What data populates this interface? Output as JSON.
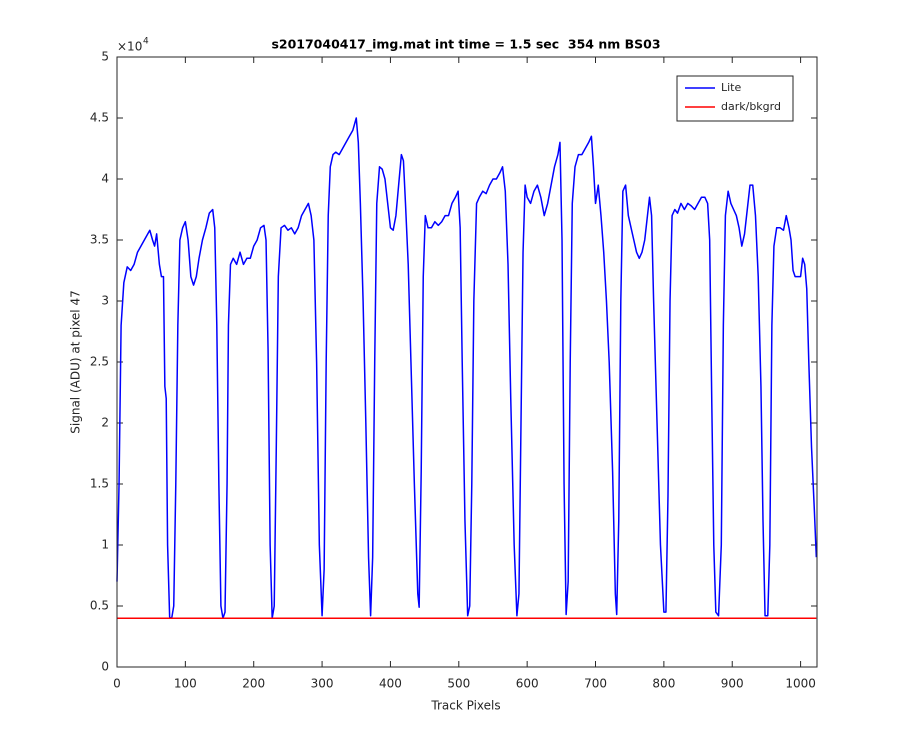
{
  "chart_data": {
    "type": "line",
    "title": "s2017040417_img.mat int time = 1.5 sec  354 nm BS03",
    "x_label": "Track Pixels",
    "y_label": "Signal (ADU) at pixel 47",
    "y_exponent_base": "×10",
    "y_exponent_power": "4",
    "xlim": [
      0,
      1024
    ],
    "ylim": [
      0,
      5
    ],
    "xticks": [
      0,
      100,
      200,
      300,
      400,
      500,
      600,
      700,
      800,
      900,
      1000
    ],
    "yticks": [
      0,
      0.5,
      1,
      1.5,
      2,
      2.5,
      3,
      3.5,
      4,
      4.5,
      5
    ],
    "grid": false,
    "legend_location": "northeast",
    "series": [
      {
        "name": "Lite",
        "color": "#0000ff",
        "x": [
          0,
          3,
          6,
          10,
          15,
          20,
          25,
          30,
          35,
          40,
          45,
          48,
          52,
          55,
          58,
          62,
          65,
          68,
          70,
          72,
          74,
          77,
          80,
          83,
          86,
          89,
          92,
          96,
          100,
          104,
          108,
          112,
          116,
          120,
          125,
          130,
          135,
          140,
          143,
          146,
          149,
          152,
          155,
          158,
          161,
          163,
          166,
          170,
          175,
          180,
          185,
          190,
          195,
          200,
          205,
          210,
          215,
          218,
          221,
          224,
          227,
          230,
          233,
          236,
          240,
          245,
          250,
          255,
          260,
          265,
          270,
          275,
          280,
          284,
          288,
          292,
          296,
          300,
          303,
          306,
          309,
          312,
          316,
          320,
          325,
          330,
          335,
          340,
          345,
          350,
          353,
          356,
          360,
          364,
          368,
          371,
          374,
          377,
          380,
          384,
          388,
          392,
          396,
          400,
          404,
          408,
          412,
          416,
          419,
          422,
          426,
          430,
          435,
          440,
          442,
          445,
          448,
          451,
          455,
          460,
          465,
          470,
          475,
          480,
          485,
          490,
          495,
          499,
          502,
          505,
          509,
          513,
          516,
          519,
          522,
          526,
          530,
          535,
          540,
          545,
          550,
          555,
          560,
          564,
          568,
          572,
          576,
          581,
          585,
          588,
          591,
          594,
          597,
          600,
          605,
          610,
          615,
          620,
          625,
          630,
          635,
          640,
          645,
          648,
          651,
          654,
          657,
          660,
          663,
          666,
          670,
          675,
          680,
          685,
          690,
          694,
          697,
          700,
          704,
          708,
          712,
          716,
          720,
          725,
          729,
          731,
          734,
          737,
          740,
          744,
          748,
          752,
          756,
          760,
          764,
          768,
          772,
          776,
          779,
          782,
          785,
          790,
          795,
          800,
          803,
          806,
          809,
          812,
          816,
          820,
          825,
          830,
          835,
          840,
          845,
          850,
          855,
          860,
          864,
          867,
          870,
          873,
          876,
          880,
          884,
          887,
          890,
          894,
          898,
          902,
          906,
          910,
          914,
          918,
          922,
          926,
          930,
          934,
          938,
          942,
          945,
          948,
          952,
          955,
          958,
          961,
          965,
          970,
          975,
          979,
          983,
          986,
          989,
          992,
          996,
          1000,
          1003,
          1006,
          1009,
          1012,
          1016,
          1020,
          1023
        ],
        "values": [
          0.7,
          1.5,
          2.8,
          3.15,
          3.28,
          3.25,
          3.3,
          3.4,
          3.45,
          3.5,
          3.55,
          3.58,
          3.5,
          3.45,
          3.55,
          3.3,
          3.2,
          3.2,
          2.3,
          2.2,
          1.0,
          0.41,
          0.4,
          0.5,
          1.5,
          2.8,
          3.5,
          3.6,
          3.65,
          3.5,
          3.2,
          3.13,
          3.2,
          3.35,
          3.5,
          3.6,
          3.72,
          3.75,
          3.6,
          2.8,
          1.5,
          0.5,
          0.4,
          0.45,
          1.5,
          2.8,
          3.3,
          3.35,
          3.3,
          3.4,
          3.3,
          3.35,
          3.35,
          3.45,
          3.5,
          3.6,
          3.62,
          3.5,
          2.6,
          1.0,
          0.4,
          0.5,
          1.8,
          3.2,
          3.6,
          3.62,
          3.58,
          3.6,
          3.55,
          3.6,
          3.7,
          3.75,
          3.8,
          3.7,
          3.5,
          2.5,
          1.0,
          0.42,
          0.8,
          2.5,
          3.7,
          4.1,
          4.2,
          4.22,
          4.2,
          4.25,
          4.3,
          4.35,
          4.4,
          4.5,
          4.3,
          3.8,
          3.0,
          2.0,
          0.9,
          0.42,
          0.9,
          2.5,
          3.8,
          4.1,
          4.08,
          4.0,
          3.8,
          3.6,
          3.58,
          3.7,
          3.95,
          4.2,
          4.15,
          3.8,
          3.3,
          2.5,
          1.5,
          0.6,
          0.49,
          1.6,
          3.2,
          3.7,
          3.6,
          3.6,
          3.65,
          3.62,
          3.65,
          3.7,
          3.7,
          3.8,
          3.85,
          3.9,
          3.6,
          2.5,
          1.2,
          0.42,
          0.5,
          1.5,
          3.0,
          3.8,
          3.85,
          3.9,
          3.88,
          3.95,
          4.0,
          4.0,
          4.05,
          4.1,
          3.9,
          3.3,
          2.2,
          1.0,
          0.42,
          0.6,
          2.0,
          3.4,
          3.95,
          3.85,
          3.8,
          3.9,
          3.95,
          3.85,
          3.7,
          3.8,
          3.95,
          4.1,
          4.2,
          4.3,
          3.5,
          1.5,
          0.43,
          0.7,
          2.5,
          3.8,
          4.1,
          4.2,
          4.2,
          4.25,
          4.3,
          4.35,
          4.1,
          3.8,
          3.95,
          3.7,
          3.4,
          3.0,
          2.5,
          1.6,
          0.6,
          0.43,
          1.2,
          3.0,
          3.9,
          3.95,
          3.7,
          3.6,
          3.5,
          3.4,
          3.35,
          3.4,
          3.5,
          3.7,
          3.85,
          3.7,
          3.0,
          2.0,
          1.0,
          0.45,
          0.45,
          1.4,
          3.0,
          3.7,
          3.75,
          3.72,
          3.8,
          3.75,
          3.8,
          3.78,
          3.75,
          3.8,
          3.85,
          3.85,
          3.8,
          3.5,
          2.2,
          1.0,
          0.45,
          0.42,
          1.0,
          2.8,
          3.7,
          3.9,
          3.8,
          3.75,
          3.7,
          3.6,
          3.45,
          3.55,
          3.75,
          3.95,
          3.95,
          3.7,
          3.2,
          2.3,
          1.2,
          0.42,
          0.42,
          1.0,
          2.8,
          3.45,
          3.6,
          3.6,
          3.58,
          3.7,
          3.6,
          3.5,
          3.25,
          3.2,
          3.2,
          3.2,
          3.35,
          3.3,
          3.1,
          2.5,
          1.8,
          1.3,
          0.9
        ]
      },
      {
        "name": "dark/bkgrd",
        "color": "#ff0000",
        "x": [
          0,
          1023
        ],
        "values": [
          0.4,
          0.4
        ]
      }
    ]
  }
}
